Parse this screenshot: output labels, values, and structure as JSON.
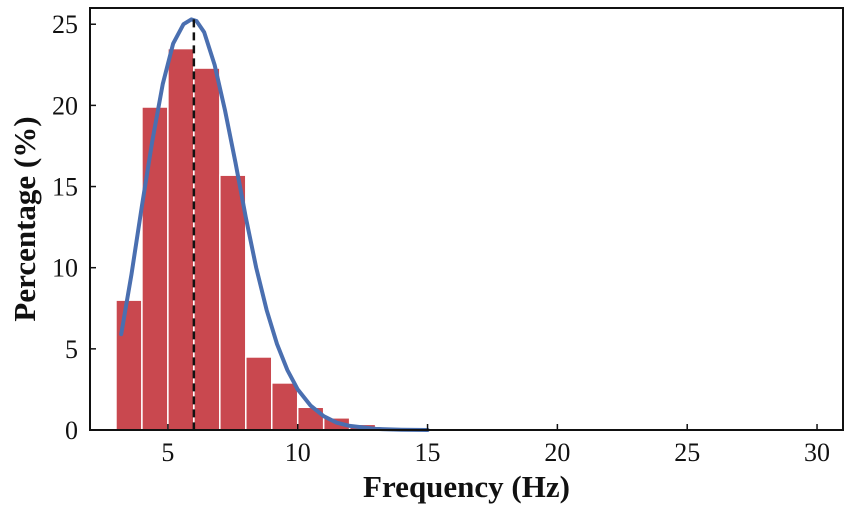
{
  "chart_data": {
    "type": "bar",
    "title": "",
    "xlabel": "Frequency (Hz)",
    "ylabel": "Percentage (%)",
    "xlim": [
      2,
      31
    ],
    "ylim": [
      0,
      26
    ],
    "xticks": [
      "5",
      "10",
      "15",
      "20",
      "25",
      "30"
    ],
    "yticks": [
      "0",
      "5",
      "10",
      "15",
      "20",
      "25"
    ],
    "grid": false,
    "legend": "none",
    "bar_width": 1,
    "bars": [
      {
        "x": 3.5,
        "value": 8.0
      },
      {
        "x": 4.5,
        "value": 19.9
      },
      {
        "x": 5.5,
        "value": 23.5
      },
      {
        "x": 6.5,
        "value": 22.3
      },
      {
        "x": 7.5,
        "value": 15.7
      },
      {
        "x": 8.5,
        "value": 4.5
      },
      {
        "x": 9.5,
        "value": 2.9
      },
      {
        "x": 10.5,
        "value": 1.4
      },
      {
        "x": 11.5,
        "value": 0.75
      },
      {
        "x": 12.5,
        "value": 0.35
      },
      {
        "x": 13.5,
        "value": 0.08
      },
      {
        "x": 14.5,
        "value": 0.04
      }
    ],
    "fit_curve": {
      "x": [
        3.2,
        3.6,
        4.0,
        4.4,
        4.8,
        5.2,
        5.6,
        5.9,
        6.1,
        6.4,
        6.8,
        7.2,
        7.6,
        8.0,
        8.4,
        8.8,
        9.2,
        9.6,
        10.0,
        10.5,
        11.0,
        11.5,
        12.0,
        13.0,
        14.0,
        15.0
      ],
      "y": [
        5.9,
        9.6,
        13.8,
        17.8,
        21.3,
        23.8,
        25.0,
        25.3,
        25.2,
        24.5,
        22.5,
        19.7,
        16.5,
        13.1,
        10.0,
        7.4,
        5.3,
        3.7,
        2.5,
        1.5,
        0.85,
        0.45,
        0.25,
        0.07,
        0.02,
        0.0
      ]
    },
    "peak_marker_x": 6.0,
    "colors": {
      "bar": "#C9484F",
      "bar_edge": "#ffffff",
      "curve": "#4A6FB0",
      "peak_line": "#111111",
      "axes": "#111111"
    }
  }
}
